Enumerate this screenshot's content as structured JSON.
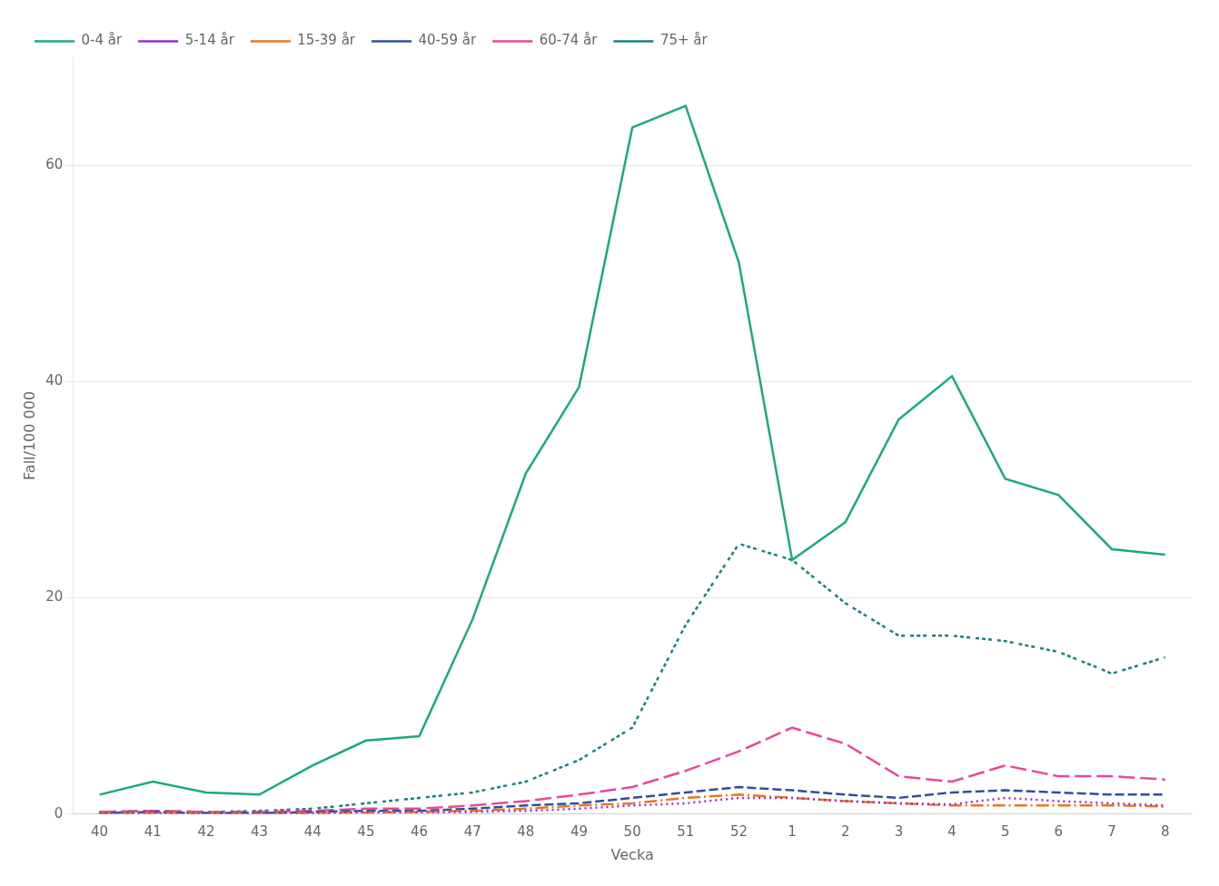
{
  "chart_data": {
    "type": "line",
    "xlabel": "Vecka",
    "ylabel": "Fall/100 000",
    "categories": [
      "40",
      "41",
      "42",
      "43",
      "44",
      "45",
      "46",
      "47",
      "48",
      "49",
      "50",
      "51",
      "52",
      "1",
      "2",
      "3",
      "4",
      "5",
      "6",
      "7",
      "8"
    ],
    "series": [
      {
        "name": "0-4 år",
        "color": "#1aaa7a",
        "line_style": "solid",
        "values": [
          1.8,
          3.0,
          2.0,
          1.8,
          4.5,
          6.8,
          7.2,
          18.0,
          31.5,
          39.5,
          63.5,
          65.5,
          51.0,
          23.5,
          27.0,
          36.5,
          40.5,
          31.0,
          29.5,
          24.5,
          24.0
        ]
      },
      {
        "name": "5-14 år",
        "color": "#9b30c8",
        "line_style": "dotted",
        "values": [
          0.1,
          0.1,
          0.1,
          0.1,
          0.1,
          0.2,
          0.2,
          0.2,
          0.3,
          0.5,
          0.8,
          1.0,
          1.5,
          1.5,
          1.2,
          1.0,
          0.9,
          1.5,
          1.2,
          1.0,
          0.8
        ]
      },
      {
        "name": "15-39 år",
        "color": "#e87722",
        "line_style": "dashdot",
        "values": [
          0.1,
          0.1,
          0.1,
          0.05,
          0.1,
          0.15,
          0.2,
          0.3,
          0.5,
          0.8,
          1.0,
          1.5,
          1.8,
          1.5,
          1.2,
          1.0,
          0.8,
          0.8,
          0.8,
          0.8,
          0.7
        ]
      },
      {
        "name": "40-59 år",
        "color": "#2d4fa0",
        "line_style": "dashed",
        "values": [
          0.1,
          0.2,
          0.1,
          0.1,
          0.2,
          0.3,
          0.3,
          0.5,
          0.8,
          1.0,
          1.5,
          2.0,
          2.5,
          2.2,
          1.8,
          1.5,
          2.0,
          2.2,
          2.0,
          1.8,
          1.8
        ]
      },
      {
        "name": "60-74 år",
        "color": "#e8489a",
        "line_style": "dashed_long",
        "values": [
          0.2,
          0.3,
          0.2,
          0.2,
          0.3,
          0.5,
          0.5,
          0.8,
          1.2,
          1.8,
          2.5,
          4.0,
          5.8,
          8.0,
          6.5,
          3.5,
          3.0,
          4.5,
          3.5,
          3.5,
          3.2
        ]
      },
      {
        "name": "75+ år",
        "color": "#1a8080",
        "line_style": "dashdotdotted",
        "values": [
          0.2,
          0.3,
          0.2,
          0.3,
          0.5,
          1.0,
          1.5,
          2.0,
          3.0,
          5.0,
          8.0,
          17.5,
          25.0,
          23.5,
          19.5,
          16.5,
          16.5,
          16.0,
          15.0,
          13.0,
          14.5
        ]
      }
    ],
    "ylim": [
      0,
      70
    ],
    "yticks": [
      0,
      20,
      40,
      60
    ],
    "grid": "y",
    "legend": "upper left"
  }
}
